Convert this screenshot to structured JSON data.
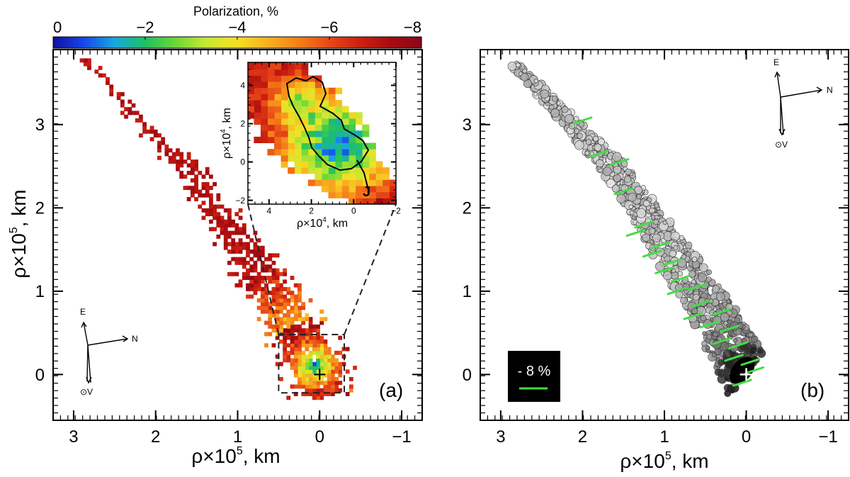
{
  "colorbar": {
    "title": "Polarization, %",
    "ticks": [
      "0",
      "−2",
      "−4",
      "−6",
      "−8"
    ],
    "tick_values": [
      0,
      -2,
      -4,
      -6,
      -8
    ],
    "range": [
      0,
      -8
    ],
    "colors": [
      "#1010a0",
      "#1846e8",
      "#16a8e0",
      "#1ec060",
      "#6ed838",
      "#c8e832",
      "#f4e024",
      "#f8b020",
      "#f48018",
      "#e84818",
      "#cc2010",
      "#a80c10",
      "#8c0818"
    ]
  },
  "chart_data": [
    {
      "id": "panel-a",
      "type": "heatmap",
      "description_label": "(a)",
      "xlabel_prefix": "ρ×10",
      "xlabel_exp": "5",
      "xlabel_suffix": ", km",
      "ylabel_prefix": "ρ×10",
      "ylabel_exp": "5",
      "ylabel_suffix": ", km",
      "xlim": [
        3.25,
        -1.25
      ],
      "ylim": [
        -0.55,
        3.9
      ],
      "xticks": [
        3,
        2,
        1,
        0,
        -1
      ],
      "yticks": [
        0,
        1,
        2,
        3
      ],
      "xtick_labels": [
        "3",
        "2",
        "1",
        "0",
        "−1"
      ],
      "ytick_labels": [
        "0",
        "1",
        "2",
        "3"
      ],
      "tail": {
        "from": [
          2.85,
          3.75
        ],
        "to": [
          0.0,
          0.0
        ],
        "spine": [
          [
            2.85,
            3.75
          ],
          [
            1.6,
            2.45
          ],
          [
            0.55,
            0.95
          ],
          [
            0.0,
            0.0
          ]
        ],
        "min_polarization_percent": -1.0,
        "outer_polarization_percent": -8.0
      },
      "nucleus_marker": [
        0.0,
        0.0
      ],
      "zoom_box": {
        "x": [
          0.5,
          -0.3
        ],
        "y": [
          -0.22,
          0.48
        ]
      },
      "compass": {
        "labels": [
          "E",
          "N",
          "⊙V"
        ]
      },
      "inset": {
        "xlabel_prefix": "ρ×10",
        "xlabel_exp": "4",
        "xlabel_suffix": ", km",
        "ylabel_prefix": "ρ×10",
        "ylabel_exp": "4",
        "ylabel_suffix": ", km",
        "xlim": [
          5.0,
          -2.0
        ],
        "ylim": [
          -2.2,
          5.2
        ],
        "xticks": [
          4,
          2,
          0,
          -2
        ],
        "yticks": [
          -2,
          0,
          2,
          4
        ],
        "xtick_labels": [
          "4",
          "2",
          "0",
          "−2"
        ],
        "ytick_labels": [
          "−2",
          "0",
          "2",
          "4"
        ],
        "feature_label": "J",
        "core_center": [
          0.6,
          0.8
        ],
        "core_polarization_percent": -1.0
      }
    },
    {
      "id": "panel-b",
      "type": "scatter",
      "description_label": "(b)",
      "xlabel_prefix": "ρ×10",
      "xlabel_exp": "5",
      "xlabel_suffix": ", km",
      "xlim": [
        3.25,
        -1.25
      ],
      "ylim": [
        -0.55,
        3.9
      ],
      "xticks": [
        3,
        2,
        1,
        0,
        -1
      ],
      "yticks": [
        0,
        1,
        2,
        3
      ],
      "xtick_labels": [
        "3",
        "2",
        "1",
        "0",
        "−1"
      ],
      "ytick_labels": [
        "0",
        "1",
        "2",
        "3"
      ],
      "vector_legend": "- 8 %",
      "vector_color": "#44dd44",
      "nucleus_marker": [
        0.0,
        0.0
      ],
      "compass": {
        "labels": [
          "E",
          "N",
          "⊙V"
        ]
      },
      "polarization_vectors": [
        [
          2.0,
          3.05
        ],
        [
          1.8,
          2.65
        ],
        [
          1.55,
          2.55
        ],
        [
          1.5,
          2.2
        ],
        [
          1.25,
          1.8
        ],
        [
          1.35,
          1.7
        ],
        [
          1.05,
          1.55
        ],
        [
          1.15,
          1.45
        ],
        [
          0.9,
          1.35
        ],
        [
          1.0,
          1.25
        ],
        [
          0.8,
          1.15
        ],
        [
          0.6,
          1.05
        ],
        [
          0.85,
          1.0
        ],
        [
          0.55,
          0.85
        ],
        [
          0.3,
          0.75
        ],
        [
          0.65,
          0.7
        ],
        [
          0.45,
          0.6
        ],
        [
          0.2,
          0.55
        ],
        [
          0.3,
          0.4
        ],
        [
          0.1,
          0.35
        ],
        [
          -0.05,
          0.15
        ],
        [
          0.15,
          0.2
        ],
        [
          0.05,
          -0.1
        ],
        [
          -0.1,
          0.05
        ]
      ]
    }
  ]
}
